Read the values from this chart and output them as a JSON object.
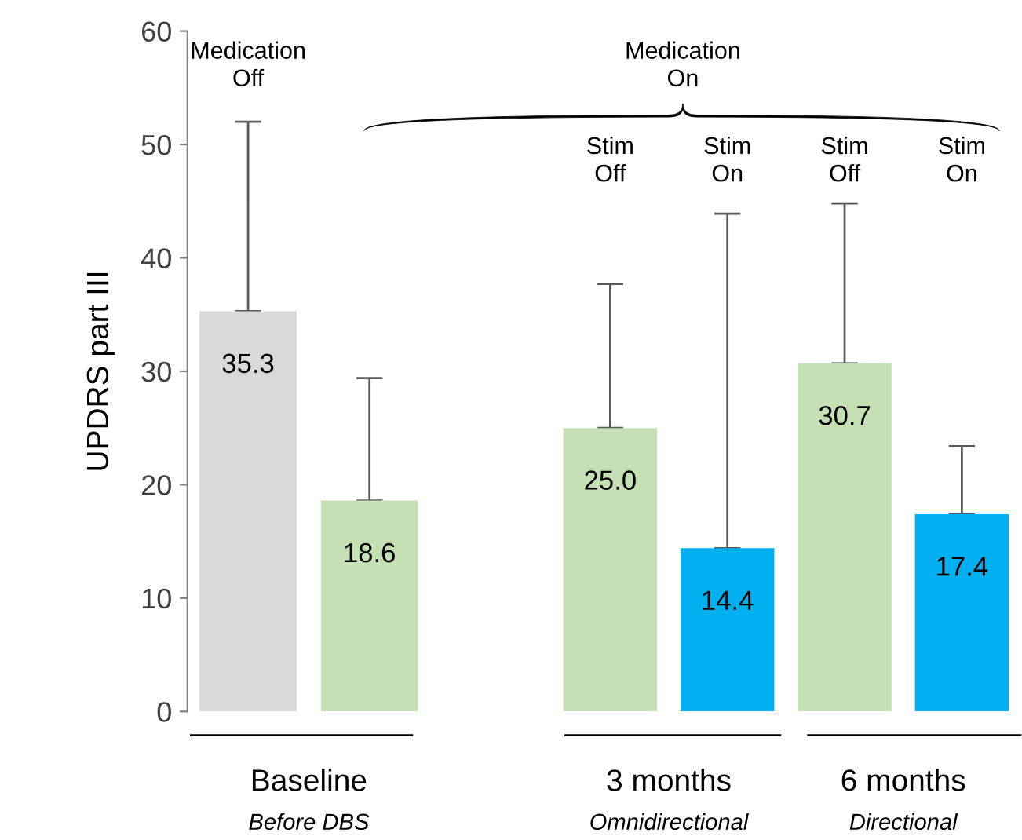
{
  "chart_data": [
    {
      "type": "bar",
      "categories": [
        null,
        null
      ],
      "values": [
        35.3,
        18.6
      ],
      "value_labels": [
        "35.3",
        "18.6"
      ],
      "colors": [
        "#d9d9d9",
        "#c5e0b4"
      ],
      "errors": [
        [
          35.3,
          52.0
        ],
        [
          18.6,
          29.4
        ]
      ],
      "ylabel": "UPDRS part III",
      "ylim": [
        0,
        60
      ],
      "yticks": [
        0,
        10,
        20,
        30,
        40,
        50,
        60
      ],
      "tick_labels": "y",
      "grid": false,
      "legend": false,
      "annotations": [
        "Medication\nOff",
        "Baseline",
        "Before DBS"
      ]
    },
    {
      "type": "bar",
      "categories": [
        null,
        null,
        null,
        null
      ],
      "values": [
        25.0,
        14.4,
        30.7,
        17.4
      ],
      "value_labels": [
        "25.0",
        "14.4",
        "30.7",
        "17.4"
      ],
      "colors": [
        "#c5e0b4",
        "#00b0f0",
        "#c5e0b4",
        "#00b0f0"
      ],
      "errors": [
        [
          25.0,
          37.7
        ],
        [
          14.4,
          43.9
        ],
        [
          30.7,
          44.8
        ],
        [
          17.4,
          23.4
        ]
      ],
      "ylim": [
        0,
        60
      ],
      "tick_labels": false,
      "grid": false,
      "legend": false,
      "annotations": [
        "Medication\nOn",
        "Stim\nOff",
        "Stim\nOn",
        "Stim\nOff",
        "Stim\nOn",
        "3 months",
        "Omnidirectional",
        "6 months",
        "Directional"
      ]
    }
  ]
}
